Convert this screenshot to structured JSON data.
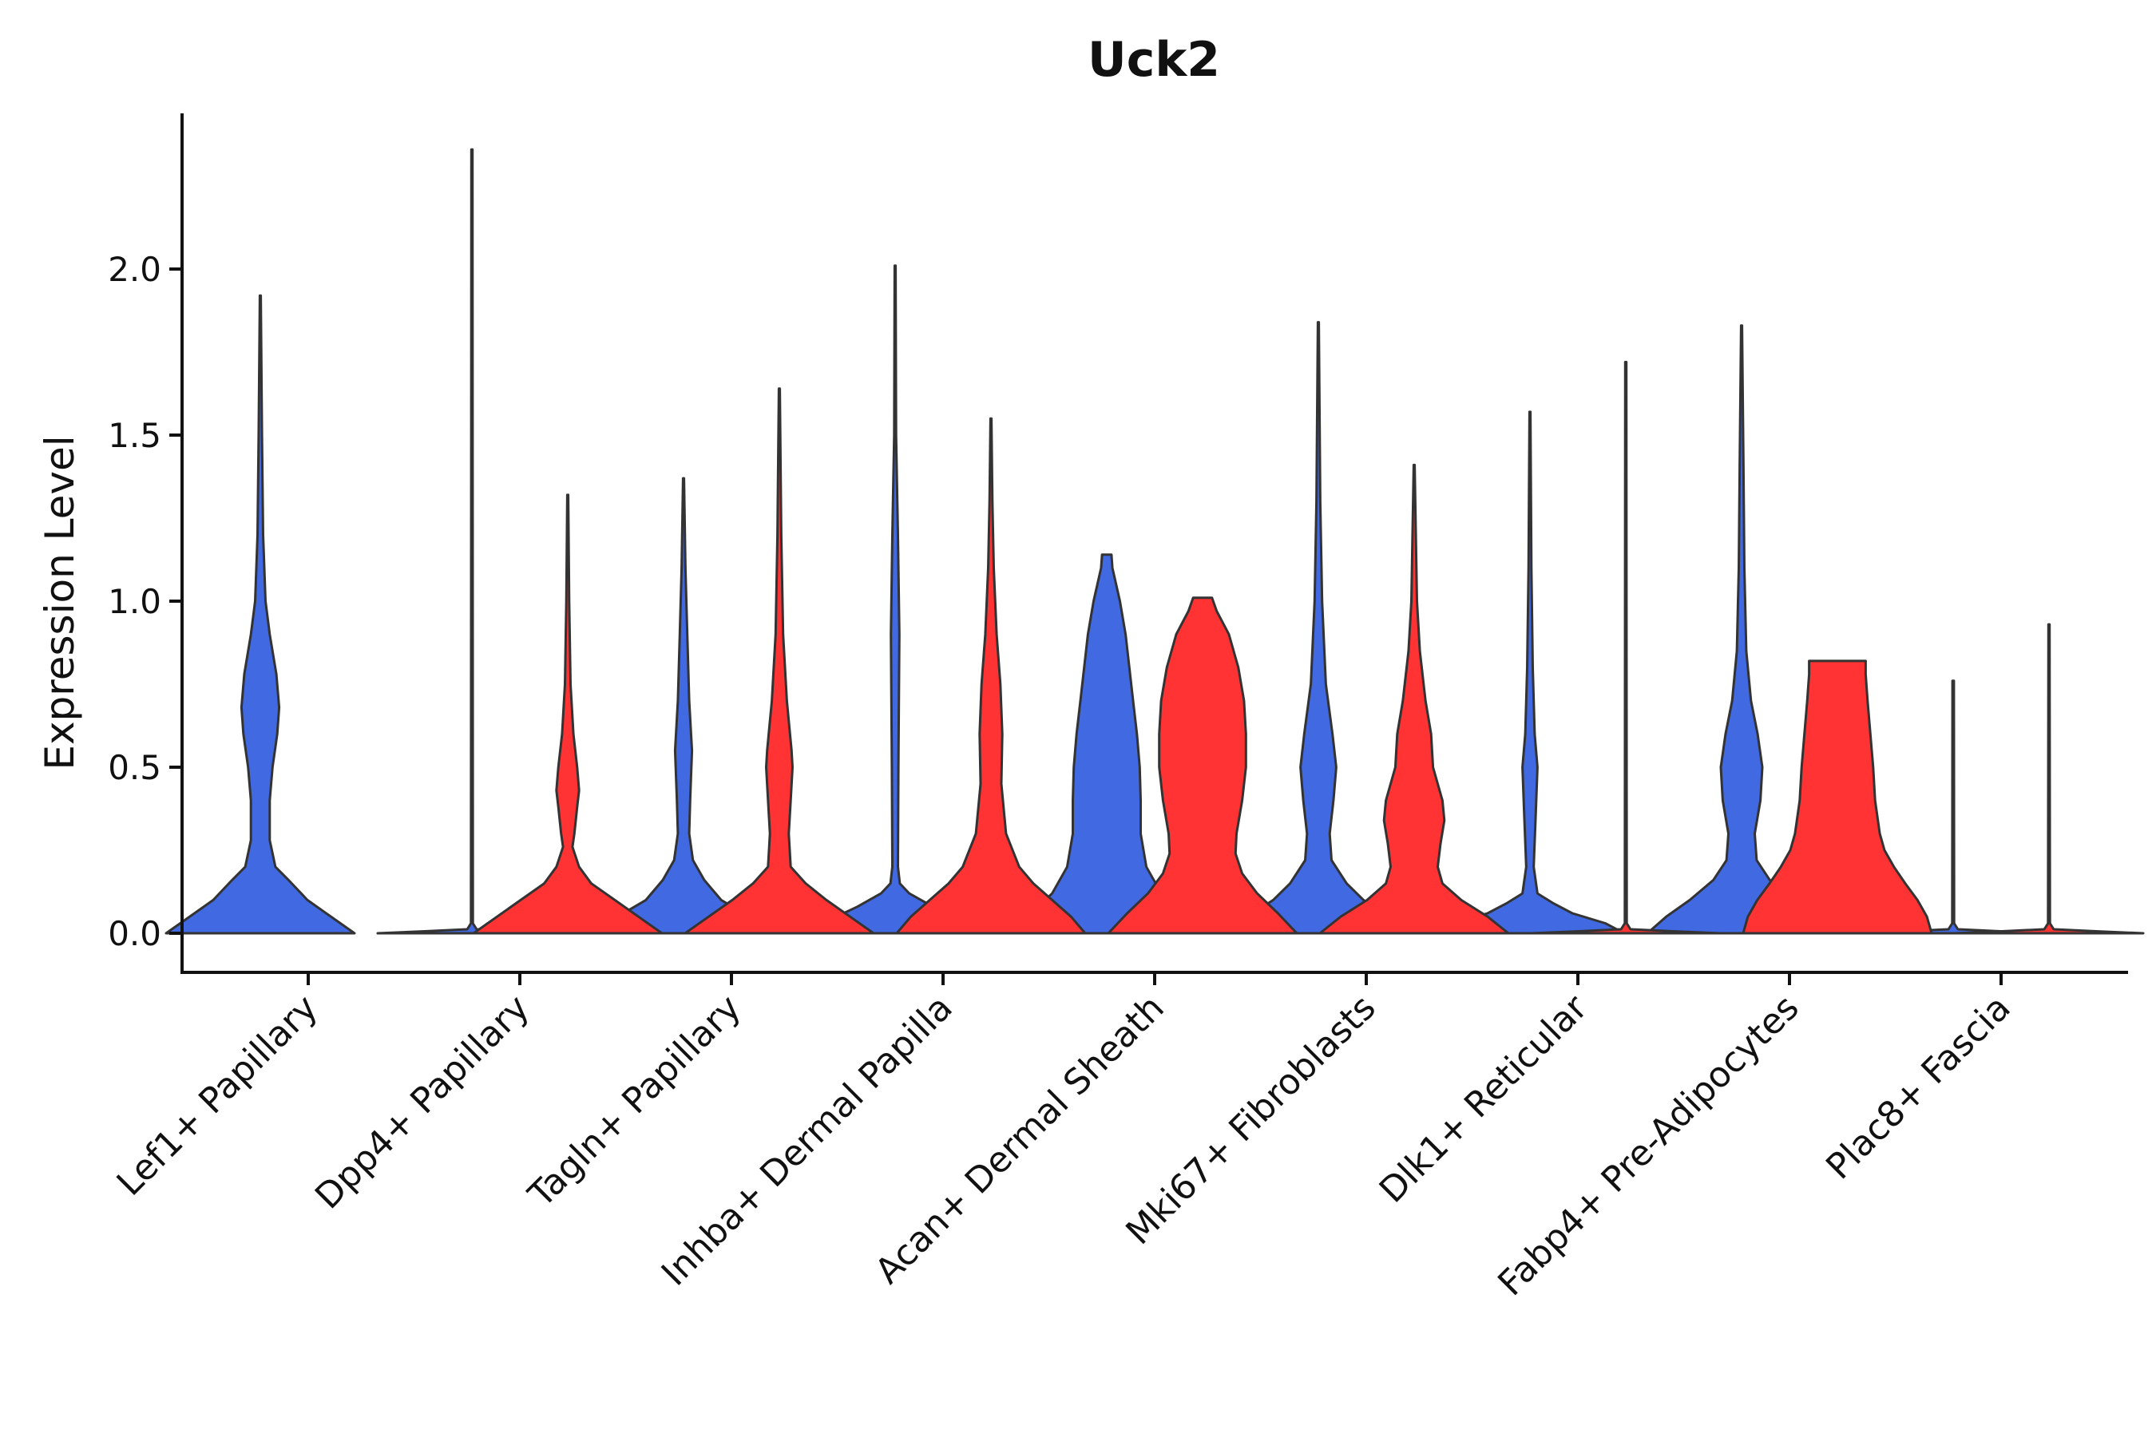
{
  "chart_data": {
    "type": "violin",
    "title": "Uck2",
    "xlabel": "",
    "ylabel": "Expression Level",
    "ylim": [
      -0.12,
      2.45
    ],
    "yticks": [
      0.0,
      0.5,
      1.0,
      1.5,
      2.0
    ],
    "ytick_labels": [
      "0.0",
      "0.5",
      "1.0",
      "1.5",
      "2.0"
    ],
    "categories": [
      "Lef1+ Papillary",
      "Dpp4+ Papillary",
      "Tagln+ Papillary",
      "Inhba+ Dermal Papilla",
      "Acan+ Dermal Sheath",
      "Mki67+ Fibroblasts",
      "Dlk1+ Reticular",
      "Fabp4+ Pre-Adipocytes",
      "Plac8+ Fascia"
    ],
    "series": [
      {
        "name": "blue",
        "color": "#4169e1",
        "violins": [
          {
            "category": "Lef1+ Papillary",
            "max": 1.92,
            "profile": [
              [
                0.0,
                1.0
              ],
              [
                0.04,
                0.8
              ],
              [
                0.1,
                0.5
              ],
              [
                0.16,
                0.3
              ],
              [
                0.2,
                0.16
              ],
              [
                0.28,
                0.1
              ],
              [
                0.4,
                0.1
              ],
              [
                0.5,
                0.13
              ],
              [
                0.6,
                0.18
              ],
              [
                0.68,
                0.2
              ],
              [
                0.78,
                0.17
              ],
              [
                0.9,
                0.1
              ],
              [
                1.0,
                0.055
              ],
              [
                1.2,
                0.03
              ],
              [
                1.5,
                0.018
              ],
              [
                1.92,
                0.004
              ]
            ]
          },
          {
            "category": "Dpp4+ Papillary",
            "max": 2.36,
            "profile": [
              [
                0.0,
                1.0
              ],
              [
                0.006,
                0.5
              ],
              [
                0.012,
                0.05
              ],
              [
                0.03,
                0.01
              ],
              [
                2.36,
                0.006
              ]
            ]
          },
          {
            "category": "Tagln+ Papillary",
            "max": 1.37,
            "profile": [
              [
                0.0,
                1.0
              ],
              [
                0.05,
                0.7
              ],
              [
                0.1,
                0.4
              ],
              [
                0.16,
                0.22
              ],
              [
                0.22,
                0.1
              ],
              [
                0.3,
                0.06
              ],
              [
                0.4,
                0.07
              ],
              [
                0.55,
                0.09
              ],
              [
                0.7,
                0.06
              ],
              [
                0.9,
                0.04
              ],
              [
                1.1,
                0.02
              ],
              [
                1.37,
                0.005
              ]
            ]
          },
          {
            "category": "Inhba+ Dermal Papilla",
            "max": 2.01,
            "profile": [
              [
                0.0,
                1.0
              ],
              [
                0.04,
                0.7
              ],
              [
                0.08,
                0.4
              ],
              [
                0.12,
                0.15
              ],
              [
                0.15,
                0.05
              ],
              [
                0.2,
                0.03
              ],
              [
                0.5,
                0.035
              ],
              [
                0.9,
                0.045
              ],
              [
                1.2,
                0.03
              ],
              [
                1.5,
                0.01
              ],
              [
                2.01,
                0.004
              ]
            ]
          },
          {
            "category": "Acan+ Dermal Sheath",
            "max": 1.14,
            "profile": [
              [
                0.0,
                1.0
              ],
              [
                0.06,
                0.8
              ],
              [
                0.12,
                0.58
              ],
              [
                0.2,
                0.42
              ],
              [
                0.3,
                0.36
              ],
              [
                0.4,
                0.36
              ],
              [
                0.5,
                0.35
              ],
              [
                0.6,
                0.32
              ],
              [
                0.7,
                0.28
              ],
              [
                0.8,
                0.24
              ],
              [
                0.9,
                0.2
              ],
              [
                1.0,
                0.14
              ],
              [
                1.1,
                0.06
              ],
              [
                1.14,
                0.05
              ]
            ]
          },
          {
            "category": "Mki67+ Fibroblasts",
            "max": 1.84,
            "profile": [
              [
                0.0,
                1.0
              ],
              [
                0.05,
                0.75
              ],
              [
                0.1,
                0.48
              ],
              [
                0.15,
                0.3
              ],
              [
                0.22,
                0.14
              ],
              [
                0.3,
                0.12
              ],
              [
                0.4,
                0.16
              ],
              [
                0.5,
                0.19
              ],
              [
                0.6,
                0.15
              ],
              [
                0.75,
                0.08
              ],
              [
                1.0,
                0.04
              ],
              [
                1.3,
                0.02
              ],
              [
                1.84,
                0.004
              ]
            ]
          },
          {
            "category": "Dlk1+ Reticular",
            "max": 1.57,
            "profile": [
              [
                0.0,
                1.0
              ],
              [
                0.03,
                0.8
              ],
              [
                0.06,
                0.45
              ],
              [
                0.09,
                0.25
              ],
              [
                0.12,
                0.08
              ],
              [
                0.2,
                0.04
              ],
              [
                0.35,
                0.06
              ],
              [
                0.5,
                0.08
              ],
              [
                0.6,
                0.05
              ],
              [
                0.8,
                0.03
              ],
              [
                1.1,
                0.015
              ],
              [
                1.57,
                0.004
              ]
            ]
          },
          {
            "category": "Fabp4+ Pre-Adipocytes",
            "max": 1.83,
            "profile": [
              [
                0.0,
                1.0
              ],
              [
                0.05,
                0.8
              ],
              [
                0.1,
                0.55
              ],
              [
                0.16,
                0.3
              ],
              [
                0.22,
                0.16
              ],
              [
                0.3,
                0.14
              ],
              [
                0.4,
                0.2
              ],
              [
                0.5,
                0.22
              ],
              [
                0.6,
                0.17
              ],
              [
                0.7,
                0.1
              ],
              [
                0.85,
                0.05
              ],
              [
                1.1,
                0.03
              ],
              [
                1.4,
                0.02
              ],
              [
                1.83,
                0.004
              ]
            ]
          },
          {
            "category": "Plac8+ Fascia",
            "max": 0.76,
            "profile": [
              [
                0.0,
                1.0
              ],
              [
                0.006,
                0.5
              ],
              [
                0.012,
                0.05
              ],
              [
                0.03,
                0.01
              ],
              [
                0.76,
                0.008
              ]
            ]
          }
        ]
      },
      {
        "name": "red",
        "color": "#ff3333",
        "violins": [
          {
            "category": "Dpp4+ Papillary",
            "max": 1.32,
            "profile": [
              [
                0.0,
                1.0
              ],
              [
                0.05,
                0.75
              ],
              [
                0.1,
                0.5
              ],
              [
                0.15,
                0.25
              ],
              [
                0.2,
                0.12
              ],
              [
                0.26,
                0.05
              ],
              [
                0.3,
                0.07
              ],
              [
                0.38,
                0.1
              ],
              [
                0.43,
                0.12
              ],
              [
                0.5,
                0.1
              ],
              [
                0.6,
                0.06
              ],
              [
                0.75,
                0.03
              ],
              [
                1.0,
                0.015
              ],
              [
                1.32,
                0.004
              ]
            ]
          },
          {
            "category": "Tagln+ Papillary",
            "max": 1.64,
            "profile": [
              [
                0.0,
                1.0
              ],
              [
                0.05,
                0.75
              ],
              [
                0.1,
                0.5
              ],
              [
                0.15,
                0.28
              ],
              [
                0.2,
                0.12
              ],
              [
                0.3,
                0.1
              ],
              [
                0.4,
                0.12
              ],
              [
                0.5,
                0.14
              ],
              [
                0.55,
                0.13
              ],
              [
                0.7,
                0.08
              ],
              [
                0.9,
                0.04
              ],
              [
                1.2,
                0.02
              ],
              [
                1.64,
                0.004
              ]
            ]
          },
          {
            "category": "Inhba+ Dermal Papilla",
            "max": 1.55,
            "profile": [
              [
                0.0,
                1.0
              ],
              [
                0.05,
                0.85
              ],
              [
                0.1,
                0.65
              ],
              [
                0.15,
                0.45
              ],
              [
                0.2,
                0.3
              ],
              [
                0.3,
                0.16
              ],
              [
                0.45,
                0.11
              ],
              [
                0.6,
                0.12
              ],
              [
                0.75,
                0.1
              ],
              [
                0.9,
                0.06
              ],
              [
                1.1,
                0.03
              ],
              [
                1.3,
                0.015
              ],
              [
                1.55,
                0.004
              ]
            ]
          },
          {
            "category": "Acan+ Dermal Sheath",
            "max": 1.01,
            "profile": [
              [
                0.0,
                1.0
              ],
              [
                0.06,
                0.8
              ],
              [
                0.12,
                0.58
              ],
              [
                0.18,
                0.42
              ],
              [
                0.24,
                0.35
              ],
              [
                0.3,
                0.36
              ],
              [
                0.4,
                0.42
              ],
              [
                0.5,
                0.46
              ],
              [
                0.6,
                0.46
              ],
              [
                0.7,
                0.44
              ],
              [
                0.8,
                0.38
              ],
              [
                0.9,
                0.28
              ],
              [
                0.97,
                0.15
              ],
              [
                1.01,
                0.1
              ]
            ]
          },
          {
            "category": "Mki67+ Fibroblasts",
            "max": 1.41,
            "profile": [
              [
                0.0,
                1.0
              ],
              [
                0.05,
                0.78
              ],
              [
                0.1,
                0.5
              ],
              [
                0.15,
                0.3
              ],
              [
                0.2,
                0.25
              ],
              [
                0.27,
                0.28
              ],
              [
                0.34,
                0.32
              ],
              [
                0.4,
                0.3
              ],
              [
                0.5,
                0.2
              ],
              [
                0.6,
                0.18
              ],
              [
                0.7,
                0.12
              ],
              [
                0.85,
                0.06
              ],
              [
                1.0,
                0.03
              ],
              [
                1.41,
                0.004
              ]
            ]
          },
          {
            "category": "Dlk1+ Reticular",
            "max": 1.72,
            "profile": [
              [
                0.0,
                1.0
              ],
              [
                0.006,
                0.5
              ],
              [
                0.012,
                0.05
              ],
              [
                0.03,
                0.01
              ],
              [
                1.72,
                0.006
              ]
            ]
          },
          {
            "category": "Fabp4+ Pre-Adipocytes",
            "max": 0.82,
            "profile": [
              [
                0.0,
                1.0
              ],
              [
                0.05,
                0.95
              ],
              [
                0.1,
                0.85
              ],
              [
                0.15,
                0.72
              ],
              [
                0.2,
                0.6
              ],
              [
                0.25,
                0.5
              ],
              [
                0.3,
                0.45
              ],
              [
                0.4,
                0.4
              ],
              [
                0.5,
                0.38
              ],
              [
                0.6,
                0.35
              ],
              [
                0.7,
                0.32
              ],
              [
                0.78,
                0.3
              ],
              [
                0.82,
                0.3
              ]
            ]
          },
          {
            "category": "Plac8+ Fascia",
            "max": 0.93,
            "profile": [
              [
                0.0,
                1.0
              ],
              [
                0.006,
                0.5
              ],
              [
                0.012,
                0.05
              ],
              [
                0.03,
                0.01
              ],
              [
                0.93,
                0.006
              ]
            ]
          }
        ]
      }
    ]
  }
}
